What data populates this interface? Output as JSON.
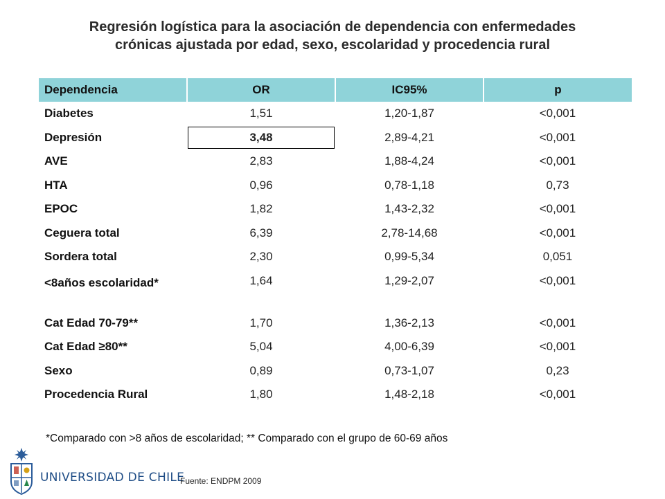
{
  "title": {
    "line1": "Regresión logística para la asociación de dependencia con enfermedades",
    "line2": "crónicas ajustada por edad, sexo,  escolaridad y procedencia rural"
  },
  "table": {
    "headers": [
      "Dependencia",
      "OR",
      "IC95%",
      "p"
    ],
    "rows": [
      {
        "name": "Diabetes",
        "or": "1,51",
        "ic": "1,20-1,87",
        "p": "<0,001"
      },
      {
        "name": "Depresión",
        "or": "3,48",
        "ic": "2,89-4,21",
        "p": "<0,001"
      },
      {
        "name": "AVE",
        "or": "2,83",
        "ic": "1,88-4,24",
        "p": "<0,001"
      },
      {
        "name": "HTA",
        "or": "0,96",
        "ic": "0,78-1,18",
        "p": "0,73"
      },
      {
        "name": "EPOC",
        "or": "1,82",
        "ic": "1,43-2,32",
        "p": "<0,001"
      },
      {
        "name": "Ceguera total",
        "or": "6,39",
        "ic": "2,78-14,68",
        "p": "<0,001"
      },
      {
        "name": "Sordera total",
        "or": "2,30",
        "ic": "0,99-5,34",
        "p": "0,051"
      },
      {
        "name": "<8años escolaridad*",
        "or": "1,64",
        "ic": "1,29-2,07",
        "p": "<0,001"
      },
      {
        "name": "Cat Edad 70-79**",
        "or": "1,70",
        "ic": "1,36-2,13",
        "p": "<0,001"
      },
      {
        "name": "Cat Edad ≥80**",
        "or": "5,04",
        "ic": "4,00-6,39",
        "p": "<0,001"
      },
      {
        "name": "Sexo",
        "or": "0,89",
        "ic": "0,73-1,07",
        "p": "0,23"
      },
      {
        "name": "Procedencia Rural",
        "or": "1,80",
        "ic": "1,48-2,18",
        "p": "<0,001"
      }
    ]
  },
  "footnote": "*Comparado con >8 años de escolaridad; ** Comparado con el grupo de 60-69 años",
  "university": "UNIVERSIDAD DE CHILE",
  "source": "Fuente: ENDPM 2009",
  "colors": {
    "header_bg": "#8fd3d9",
    "university_text": "#1f4d86"
  }
}
